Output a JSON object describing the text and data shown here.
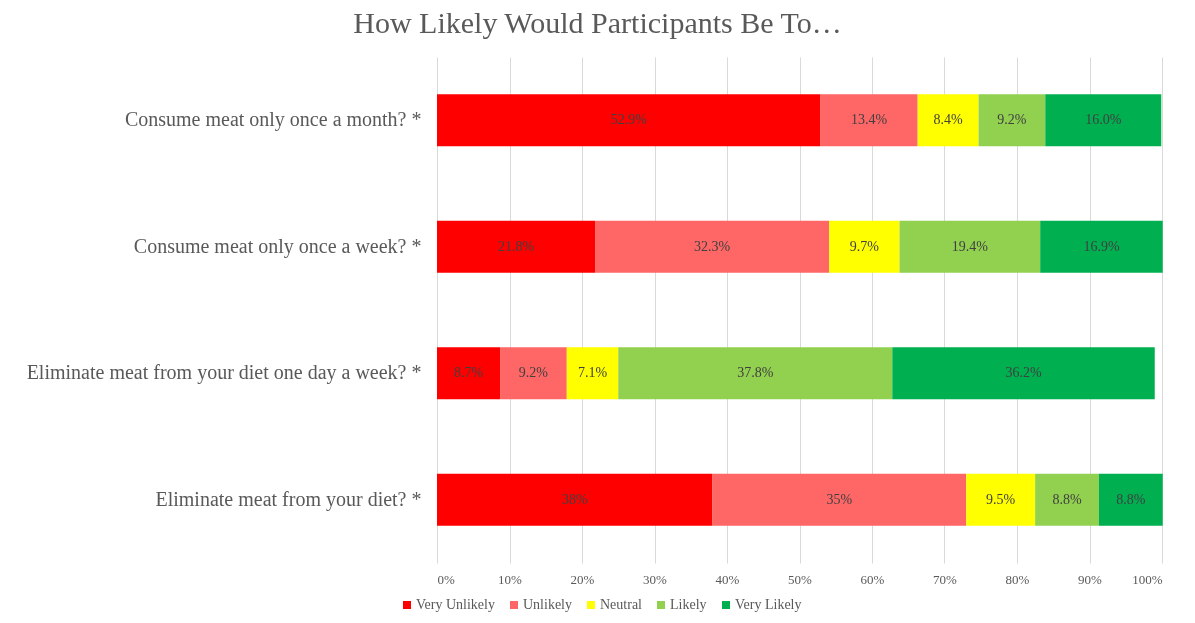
{
  "chart_data": {
    "type": "bar",
    "orientation": "horizontal",
    "stacked": true,
    "title": "How Likely Would Participants Be To…",
    "categories": [
      "Consume meat only once a month?  *",
      "Consume meat only once a week? *",
      "Eliminate meat from your diet one day a week? *",
      "Eliminate meat from your diet?  *"
    ],
    "series": [
      {
        "name": "Very Unlikely",
        "color": "#ff0000",
        "values": [
          52.9,
          21.8,
          8.7,
          38
        ],
        "value_labels": [
          "52.9%",
          "21.8%",
          "8.7%",
          "38%"
        ]
      },
      {
        "name": "Unlikely",
        "color": "#ff6666",
        "values": [
          13.4,
          32.3,
          9.2,
          35
        ],
        "value_labels": [
          "13.4%",
          "32.3%",
          "9.2%",
          "35%"
        ]
      },
      {
        "name": "Neutral",
        "color": "#ffff00",
        "values": [
          8.4,
          9.7,
          7.1,
          9.5
        ],
        "value_labels": [
          "8.4%",
          "9.7%",
          "7.1%",
          "9.5%"
        ]
      },
      {
        "name": "Likely",
        "color": "#92d050",
        "values": [
          9.2,
          19.4,
          37.8,
          8.8
        ],
        "value_labels": [
          "9.2%",
          "19.4%",
          "37.8%",
          "8.8%"
        ]
      },
      {
        "name": "Very Likely",
        "color": "#00b050",
        "values": [
          16.0,
          16.9,
          36.2,
          8.8
        ],
        "value_labels": [
          "16.0%",
          "16.9%",
          "36.2%",
          "8.8%"
        ]
      }
    ],
    "xlim": [
      0,
      100
    ],
    "xticks": [
      {
        "value": 0,
        "label": "0%"
      },
      {
        "value": 10,
        "label": "10%"
      },
      {
        "value": 20,
        "label": "20%"
      },
      {
        "value": 30,
        "label": "30%"
      },
      {
        "value": 40,
        "label": "40%"
      },
      {
        "value": 50,
        "label": "50%"
      },
      {
        "value": 60,
        "label": "60%"
      },
      {
        "value": 70,
        "label": "70%"
      },
      {
        "value": 80,
        "label": "80%"
      },
      {
        "value": 90,
        "label": "90%"
      },
      {
        "value": 100,
        "label": "100%"
      }
    ],
    "grid": "x",
    "legend": "bottom"
  }
}
